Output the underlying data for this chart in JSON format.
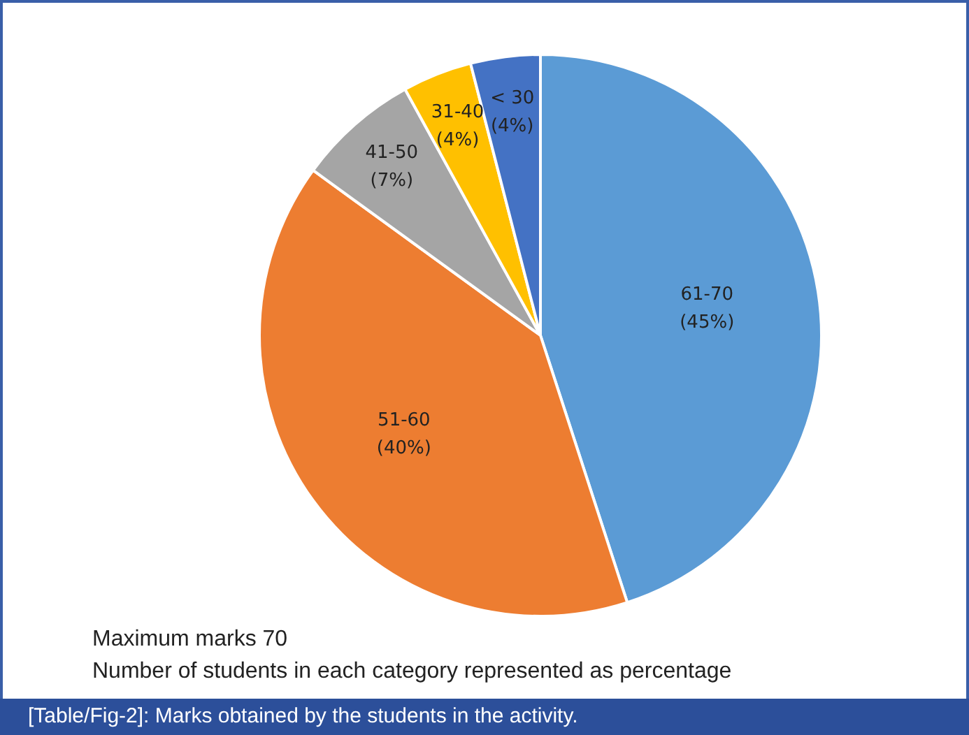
{
  "chart_data": {
    "type": "pie",
    "title": "[Table/Fig-2]: Marks obtained by the students in the activity.",
    "categories": [
      "61-70",
      "51-60",
      "41-50",
      "31-40",
      "< 30"
    ],
    "values": [
      45,
      40,
      7,
      4,
      4
    ],
    "colors": [
      "#5b9bd5",
      "#ed7d31",
      "#a5a5a5",
      "#ffc000",
      "#4472c4"
    ],
    "value_labels": [
      "(45%)",
      "(40%)",
      "(7%)",
      "(4%)",
      "(4%)"
    ],
    "legend": false,
    "annotations": [
      "Maximum marks 70",
      "Number of students in each category represented as percentage"
    ]
  }
}
